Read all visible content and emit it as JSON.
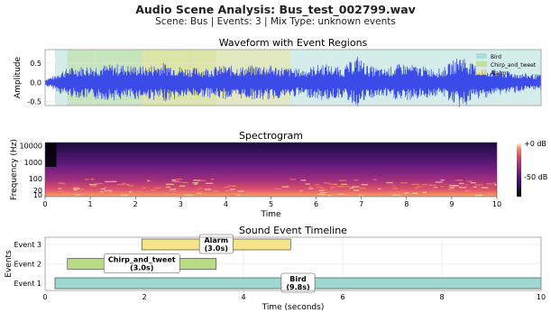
{
  "figure": {
    "title": "Audio Scene Analysis: Bus_test_002799.wav",
    "subtitle": "Scene: Bus | Events: 3 | Mix Type: unknown events"
  },
  "colors": {
    "waveform": "#3b4be8",
    "bird": "#9ed8d0",
    "chirp": "#b8dc84",
    "alarm": "#f6e48a",
    "grid": "#e3e3e3"
  },
  "chart_data": [
    {
      "type": "line",
      "title": "Waveform with Event Regions",
      "ylabel": "Amplitude",
      "xlim": [
        0,
        10
      ],
      "ylim": [
        -0.6,
        0.85
      ],
      "yticks": [
        "0.5",
        "0.0",
        "-0.5"
      ],
      "ytick_values": [
        0.5,
        0.0,
        -0.5
      ],
      "grid": true,
      "legend_position": "top-right",
      "envelope": {
        "x": [
          0.0,
          0.2,
          0.3,
          0.5,
          1.0,
          1.5,
          2.0,
          2.4,
          2.8,
          3.2,
          3.6,
          4.0,
          4.4,
          4.8,
          5.2,
          5.6,
          6.0,
          6.3,
          6.5,
          6.8,
          7.2,
          7.6,
          8.0,
          8.4,
          8.6,
          8.8,
          9.0,
          9.3,
          9.6,
          10.0
        ],
        "upper": [
          0.1,
          0.18,
          0.3,
          0.4,
          0.45,
          0.48,
          0.42,
          0.52,
          0.4,
          0.38,
          0.45,
          0.42,
          0.48,
          0.4,
          0.35,
          0.5,
          0.38,
          0.7,
          0.45,
          0.35,
          0.5,
          0.42,
          0.35,
          0.75,
          0.5,
          0.4,
          0.35,
          0.3,
          0.25,
          0.2
        ],
        "lower": [
          -0.1,
          -0.2,
          -0.3,
          -0.38,
          -0.45,
          -0.47,
          -0.42,
          -0.5,
          -0.4,
          -0.38,
          -0.44,
          -0.42,
          -0.48,
          -0.4,
          -0.36,
          -0.48,
          -0.4,
          -0.65,
          -0.45,
          -0.38,
          -0.5,
          -0.42,
          -0.35,
          -0.72,
          -0.5,
          -0.42,
          -0.35,
          -0.3,
          -0.25,
          -0.2
        ]
      },
      "regions": [
        {
          "name": "Bird",
          "start": 0.2,
          "end": 10.0,
          "color": "#9ed8d0"
        },
        {
          "name": "Chirp_and_tweet",
          "start": 0.45,
          "end": 3.45,
          "color": "#b8dc84"
        },
        {
          "name": "Alarm",
          "start": 1.95,
          "end": 4.95,
          "color": "#f6e48a"
        }
      ],
      "legend": [
        "Bird",
        "Chirp_and_tweet",
        "Alarm"
      ]
    },
    {
      "type": "heatmap",
      "title": "Spectrogram",
      "xlabel": "Time",
      "ylabel": "Frequency (Hz)",
      "xlim": [
        0,
        10
      ],
      "xticks": [
        "0",
        "1",
        "2",
        "3",
        "4",
        "5",
        "6",
        "7",
        "8",
        "9",
        "10"
      ],
      "yscale": "log",
      "yticks": [
        "10000",
        "1000",
        "100",
        "20",
        "10"
      ],
      "ytick_values": [
        10000,
        1000,
        100,
        20,
        10
      ],
      "ylim": [
        8,
        16000
      ],
      "colorbar": {
        "labels": [
          "+0 dB",
          "-50 dB"
        ],
        "values": [
          0,
          -50
        ],
        "range": [
          -80,
          0
        ],
        "colormap": "magma"
      },
      "grid": false
    },
    {
      "type": "bar",
      "title": "Sound Event Timeline",
      "xlabel": "Time (seconds)",
      "ylabel": "Events",
      "xlim": [
        0,
        10
      ],
      "xticks": [
        "0",
        "2",
        "4",
        "6",
        "8",
        "10"
      ],
      "categories": [
        "Event 1",
        "Event 2",
        "Event 3"
      ],
      "events": [
        {
          "row": "Event 1",
          "label": "Bird",
          "duration_label": "(9.8s)",
          "start": 0.2,
          "end": 10.0,
          "color": "#9ed8d0"
        },
        {
          "row": "Event 2",
          "label": "Chirp_and_tweet",
          "duration_label": "(3.0s)",
          "start": 0.45,
          "end": 3.45,
          "color": "#b8dc84"
        },
        {
          "row": "Event 3",
          "label": "Alarm",
          "duration_label": "(3.0s)",
          "start": 1.95,
          "end": 4.95,
          "color": "#f6e48a"
        }
      ],
      "grid": true
    }
  ]
}
